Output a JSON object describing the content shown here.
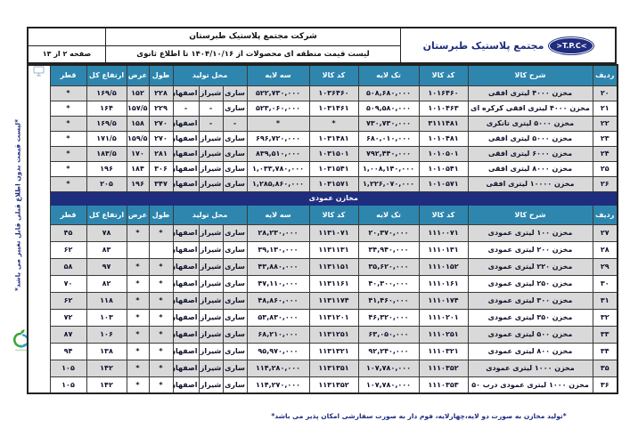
{
  "brand": {
    "logo_text": ">T.P.C<",
    "name": "مجتمع پلاستیک طبرستان"
  },
  "header": {
    "company": "شرکت مجتمع پلاستیک طبرستان",
    "list_title": "لیست قیمت منطقه ای محصولات از ۱۴۰۴/۱۰/۱۶ تا اطلاع ثانوی",
    "page_label": "صفحه ۲ از ۱۳"
  },
  "colors": {
    "header_teal": "#2e86ae",
    "band_navy": "#1f2d7f",
    "row_shade": "#d9d9d9"
  },
  "icons": {
    "monitor": "monitor-icon",
    "eco": "eco-logo",
    "tpc": "tpc-logo"
  },
  "table": {
    "columns": {
      "no": "ردیف",
      "desc": "شرح کالا",
      "code": "کد کالا",
      "single": "تک لایه",
      "triple": "سه لایه",
      "origin": "محل تولید",
      "length": "طول",
      "width": "عرض",
      "height": "ارتفاع کل",
      "diameter": "قطر"
    },
    "section2_title": "مخازن عمودی",
    "cell_order": [
      "no",
      "desc",
      "code1",
      "price1",
      "code3",
      "price3",
      "sari",
      "shiraz",
      "esfahan",
      "tol",
      "arz",
      "ertefa",
      "ghotr"
    ],
    "rows1": [
      {
        "no": "۲۰",
        "desc": "مخزن ۴۰۰۰ لیتری افقی",
        "code1": "۱۰۱۶۴۶۰",
        "price1": "۵۰۸,۶۸۰,۰۰۰",
        "code3": "۱۰۳۶۴۶۰",
        "price3": "۵۲۲,۷۳۰,۰۰۰",
        "sari": "ساری",
        "shiraz": "شیراز",
        "esfahan": "اصفهان",
        "tol": "۲۲۸",
        "arz": "۱۵۲",
        "ertefa": "۱۶۹/۵",
        "ghotr": "*"
      },
      {
        "no": "۲۱",
        "desc": "مخزن ۴۰۰۰ لیتری افقی کرکره ای",
        "code1": "۱۰۱۰۴۶۳",
        "price1": "۵۰۹,۵۸۰,۰۰۰",
        "code3": "۱۰۳۱۴۶۱",
        "price3": "۵۲۳,۰۶۰,۰۰۰",
        "sari": "ساری",
        "shiraz": "-",
        "esfahan": "-",
        "tol": "۲۲۹",
        "arz": "۱۵۷/۵",
        "ertefa": "۱۶۴",
        "ghotr": "*"
      },
      {
        "no": "۲۲",
        "desc": "مخزن ۵۰۰۰ لیتری تانکری",
        "code1": "۳۱۱۱۴۸۱",
        "price1": "۷۳۰,۷۳۰,۰۰۰",
        "code3": "*",
        "price3": "*",
        "sari": "-",
        "shiraz": "-",
        "esfahan": "اصفهان",
        "tol": "۲۷۰",
        "arz": "۱۵۸",
        "ertefa": "۱۶۹/۵",
        "ghotr": "*"
      },
      {
        "no": "۲۳",
        "desc": "مخزن ۵۰۰۰ لیتری افقی",
        "code1": "۱۰۱۰۴۸۱",
        "price1": "۶۸۰,۰۱۰,۰۰۰",
        "code3": "۱۰۳۱۴۸۱",
        "price3": "۶۹۶,۷۲۰,۰۰۰",
        "sari": "ساری",
        "shiraz": "شیراز",
        "esfahan": "اصفهان",
        "tol": "۲۷۰",
        "arz": "۱۵۹/۵",
        "ertefa": "۱۷۱/۵",
        "ghotr": "*"
      },
      {
        "no": "۲۴",
        "desc": "مخزن ۶۰۰۰ لیتری افقی",
        "code1": "۱۰۱۰۵۰۱",
        "price1": "۷۹۲,۴۴۰,۰۰۰",
        "code3": "۱۰۳۱۵۰۱",
        "price3": "۸۳۹,۵۱۰,۰۰۰",
        "sari": "ساری",
        "shiraz": "شیراز",
        "esfahan": "اصفهان",
        "tol": "۲۸۱",
        "arz": "۱۷۰",
        "ertefa": "۱۸۳/۵",
        "ghotr": "*"
      },
      {
        "no": "۲۵",
        "desc": "مخزن ۸۰۰۰ لیتری افقی",
        "code1": "۱۰۱۰۵۴۱",
        "price1": "۱,۰۰۸,۱۴۰,۰۰۰",
        "code3": "۱۰۳۱۵۴۱",
        "price3": "۱,۰۳۳,۷۸۰,۰۰۰",
        "sari": "ساری",
        "shiraz": "شیراز",
        "esfahan": "اصفهان",
        "tol": "۳۰۶",
        "arz": "۱۸۴",
        "ertefa": "۱۹۶",
        "ghotr": "*"
      },
      {
        "no": "۲۶",
        "desc": "مخزن ۱۰۰۰۰ لیتری افقی",
        "code1": "۱۰۱۰۵۷۱",
        "price1": "۱,۲۲۶,۰۷۰,۰۰۰",
        "code3": "۱۰۳۱۵۷۱",
        "price3": "۱,۲۸۵,۸۶۰,۰۰۰",
        "sari": "ساری",
        "shiraz": "شیراز",
        "esfahan": "اصفهان",
        "tol": "۳۴۷",
        "arz": "۱۹۶",
        "ertefa": "۲۰۵",
        "ghotr": "*"
      }
    ],
    "rows2": [
      {
        "no": "۲۷",
        "desc": "مخزن ۱۰۰ لیتری عمودی",
        "code1": "۱۱۱۰۰۷۱",
        "price1": "۲۰,۳۷۰,۰۰۰",
        "code3": "۱۱۳۱۰۷۱",
        "price3": "۲۸,۲۳۰,۰۰۰",
        "sari": "ساری",
        "shiraz": "شیراز",
        "esfahan": "اصفهان",
        "tol": "*",
        "arz": "*",
        "ertefa": "۷۸",
        "ghotr": "۴۵"
      },
      {
        "no": "۲۸",
        "desc": "مخزن ۲۰۰ لیتری عمودی",
        "code1": "۱۱۱۰۱۳۱",
        "price1": "۳۴,۹۴۰,۰۰۰",
        "code3": "۱۱۳۱۱۳۱",
        "price3": "۳۹,۱۳۰,۰۰۰",
        "sari": "ساری",
        "shiraz": "شیراز",
        "esfahan": "اصفهان",
        "tol": "",
        "arz": "",
        "ertefa": "۸۳",
        "ghotr": "۶۲"
      },
      {
        "no": "۲۹",
        "desc": "مخزن ۲۲۰ لیتری عمودی",
        "code1": "۱۱۱۰۱۵۲",
        "price1": "۳۵,۶۲۰,۰۰۰",
        "code3": "۱۱۳۱۱۵۱",
        "price3": "۴۳,۸۸۰,۰۰۰",
        "sari": "ساری",
        "shiraz": "شیراز",
        "esfahan": "اصفهان",
        "tol": "*",
        "arz": "*",
        "ertefa": "۹۷",
        "ghotr": "۵۸"
      },
      {
        "no": "۳۰",
        "desc": "مخزن ۲۵۰ لیتری عمودی",
        "code1": "۱۱۱۰۱۶۱",
        "price1": "۴۰,۳۰۰,۰۰۰",
        "code3": "۱۱۳۱۱۶۱",
        "price3": "۴۷,۱۱۰,۰۰۰",
        "sari": "ساری",
        "shiraz": "شیراز",
        "esfahan": "اصفهان",
        "tol": "*",
        "arz": "*",
        "ertefa": "۸۲",
        "ghotr": "۷۰"
      },
      {
        "no": "۳۱",
        "desc": "مخزن ۳۰۰ لیتری عمودی",
        "code1": "۱۱۱۰۱۷۴",
        "price1": "۴۱,۴۶۰,۰۰۰",
        "code3": "۱۱۳۱۱۷۴",
        "price3": "۴۸,۸۶۰,۰۰۰",
        "sari": "ساری",
        "shiraz": "شیراز",
        "esfahan": "اصفهان",
        "tol": "*",
        "arz": "*",
        "ertefa": "۱۱۸",
        "ghotr": "۶۲"
      },
      {
        "no": "۳۲",
        "desc": "مخزن ۳۵۰ لیتری عمودی",
        "code1": "۱۱۱۰۲۰۱",
        "price1": "۴۶,۳۲۰,۰۰۰",
        "code3": "۱۱۳۱۲۰۱",
        "price3": "۵۳,۸۳۰,۰۰۰",
        "sari": "ساری",
        "shiraz": "شیراز",
        "esfahan": "اصفهان",
        "tol": "*",
        "arz": "*",
        "ertefa": "۱۰۳",
        "ghotr": "۷۲"
      },
      {
        "no": "۳۳",
        "desc": "مخزن ۵۰۰ لیتری عمودی",
        "code1": "۱۱۱۰۲۵۱",
        "price1": "۶۳,۰۵۰,۰۰۰",
        "code3": "۱۱۳۱۲۵۱",
        "price3": "۶۸,۲۱۰,۰۰۰",
        "sari": "ساری",
        "shiraz": "شیراز",
        "esfahan": "اصفهان",
        "tol": "*",
        "arz": "*",
        "ertefa": "۱۰۶",
        "ghotr": "۸۷"
      },
      {
        "no": "۳۴",
        "desc": "مخزن ۸۰۰ لیتری عمودی",
        "code1": "۱۱۱۰۳۲۱",
        "price1": "۹۲,۲۴۰,۰۰۰",
        "code3": "۱۱۳۱۳۲۱",
        "price3": "۹۵,۹۷۰,۰۰۰",
        "sari": "ساری",
        "shiraz": "شیراز",
        "esfahan": "اصفهان",
        "tol": "*",
        "arz": "*",
        "ertefa": "۱۳۸",
        "ghotr": "۹۴"
      },
      {
        "no": "۳۵",
        "desc": "مخزن ۱۰۰۰ لیتری عمودی",
        "code1": "۱۱۱۰۳۵۲",
        "price1": "۱۰۷,۷۸۰,۰۰۰",
        "code3": "۱۱۳۱۳۵۱",
        "price3": "۱۱۴,۲۸۰,۰۰۰",
        "sari": "ساری",
        "shiraz": "شیراز",
        "esfahan": "اصفهان",
        "tol": "*",
        "arz": "*",
        "ertefa": "۱۴۲",
        "ghotr": "۱۰۵"
      },
      {
        "no": "۳۶",
        "desc": "مخزن ۱۰۰۰ لیتری عمودی درب ۵۰",
        "code1": "۱۱۱۰۳۵۳",
        "price1": "۱۰۷,۷۸۰,۰۰۰",
        "code3": "۱۱۳۱۳۵۲",
        "price3": "۱۱۴,۲۷۰,۰۰۰",
        "sari": "ساری",
        "shiraz": "شیراز",
        "esfahan": "اصفهان",
        "tol": "*",
        "arz": "*",
        "ertefa": "۱۴۲",
        "ghotr": "۱۰۵"
      }
    ]
  },
  "notes": {
    "side": "*لیست قیمت بدون اطلاع قبلی قابل تغییر می باشد*",
    "footer": "*تولید مخازن به صورت دو لایه،چهارلایه، فوم دار  به صورت سفارشی امکان پذیر می باشد*"
  }
}
